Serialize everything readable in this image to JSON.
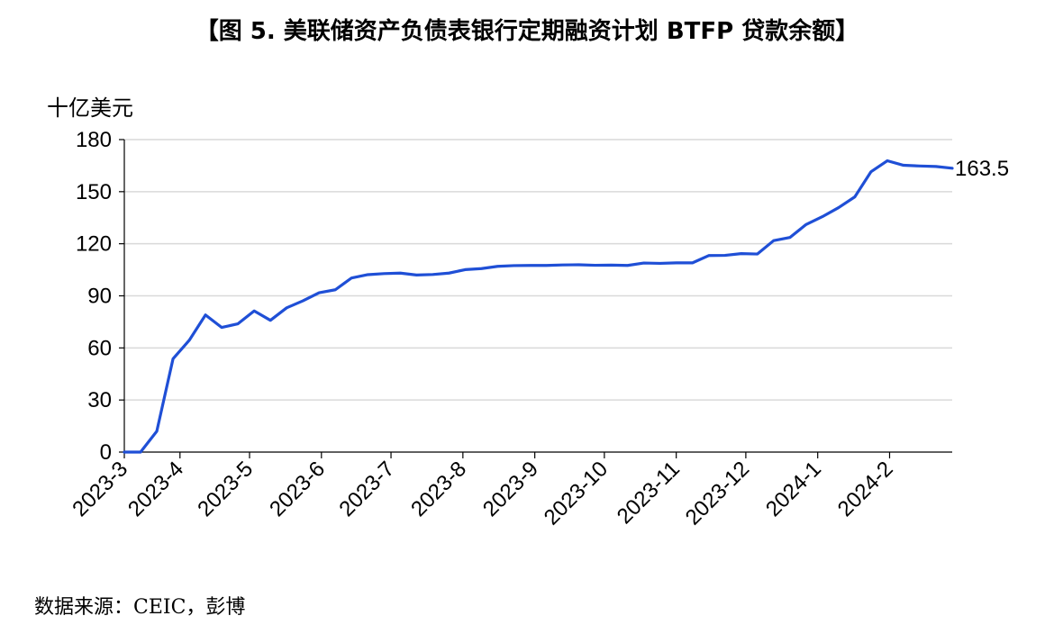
{
  "figure": {
    "title": "【图 5. 美联储资产负债表银行定期融资计划 BTFP 贷款余额】",
    "unit_label": "十亿美元",
    "source": "数据来源：CEIC，彭博"
  },
  "chart_data": {
    "type": "line",
    "title": "【图 5. 美联储资产负债表银行定期融资计划 BTFP 贷款余额】",
    "ylabel": "十亿美元",
    "ylim": [
      0,
      180
    ],
    "yticks": [
      0,
      30,
      60,
      90,
      120,
      150,
      180
    ],
    "xticks": [
      "2023-3",
      "2023-4",
      "2023-5",
      "2023-6",
      "2023-7",
      "2023-8",
      "2023-9",
      "2023-10",
      "2023-11",
      "2023-12",
      "2024-1",
      "2024-2"
    ],
    "grid": true,
    "line_color": "#1f4fd6",
    "end_label": "163.5",
    "series": [
      {
        "x": [
          "2023-03-08",
          "2023-03-15",
          "2023-03-22",
          "2023-03-29",
          "2023-04-05",
          "2023-04-12",
          "2023-04-19",
          "2023-04-26",
          "2023-05-03",
          "2023-05-10",
          "2023-05-17",
          "2023-05-24",
          "2023-05-31",
          "2023-06-07",
          "2023-06-14",
          "2023-06-21",
          "2023-06-28",
          "2023-07-05",
          "2023-07-12",
          "2023-07-19",
          "2023-07-26",
          "2023-08-02",
          "2023-08-09",
          "2023-08-16",
          "2023-08-23",
          "2023-08-30",
          "2023-09-06",
          "2023-09-13",
          "2023-09-20",
          "2023-09-27",
          "2023-10-04",
          "2023-10-11",
          "2023-10-18",
          "2023-10-25",
          "2023-11-01",
          "2023-11-08",
          "2023-11-15",
          "2023-11-22",
          "2023-11-29",
          "2023-12-06",
          "2023-12-13",
          "2023-12-20",
          "2023-12-27",
          "2024-01-03",
          "2024-01-10",
          "2024-01-17",
          "2024-01-24",
          "2024-01-31",
          "2024-02-07",
          "2024-02-14",
          "2024-02-21",
          "2024-02-28"
        ],
        "values": [
          0,
          0,
          12,
          53.7,
          64.4,
          79,
          71.8,
          73.9,
          81.3,
          75.9,
          83.1,
          87.1,
          91.8,
          93.5,
          100.3,
          102.2,
          102.8,
          103.1,
          102,
          102.3,
          103.1,
          105.1,
          105.7,
          107,
          107.4,
          107.5,
          107.5,
          107.8,
          107.9,
          107.6,
          107.7,
          107.5,
          108.9,
          108.7,
          109,
          109,
          113.2,
          113.3,
          114.3,
          114.1,
          121.8,
          123.6,
          131.1,
          135.6,
          140.8,
          147,
          161.5,
          167.8,
          165.2,
          164.8,
          164.5,
          163.5
        ]
      }
    ]
  }
}
